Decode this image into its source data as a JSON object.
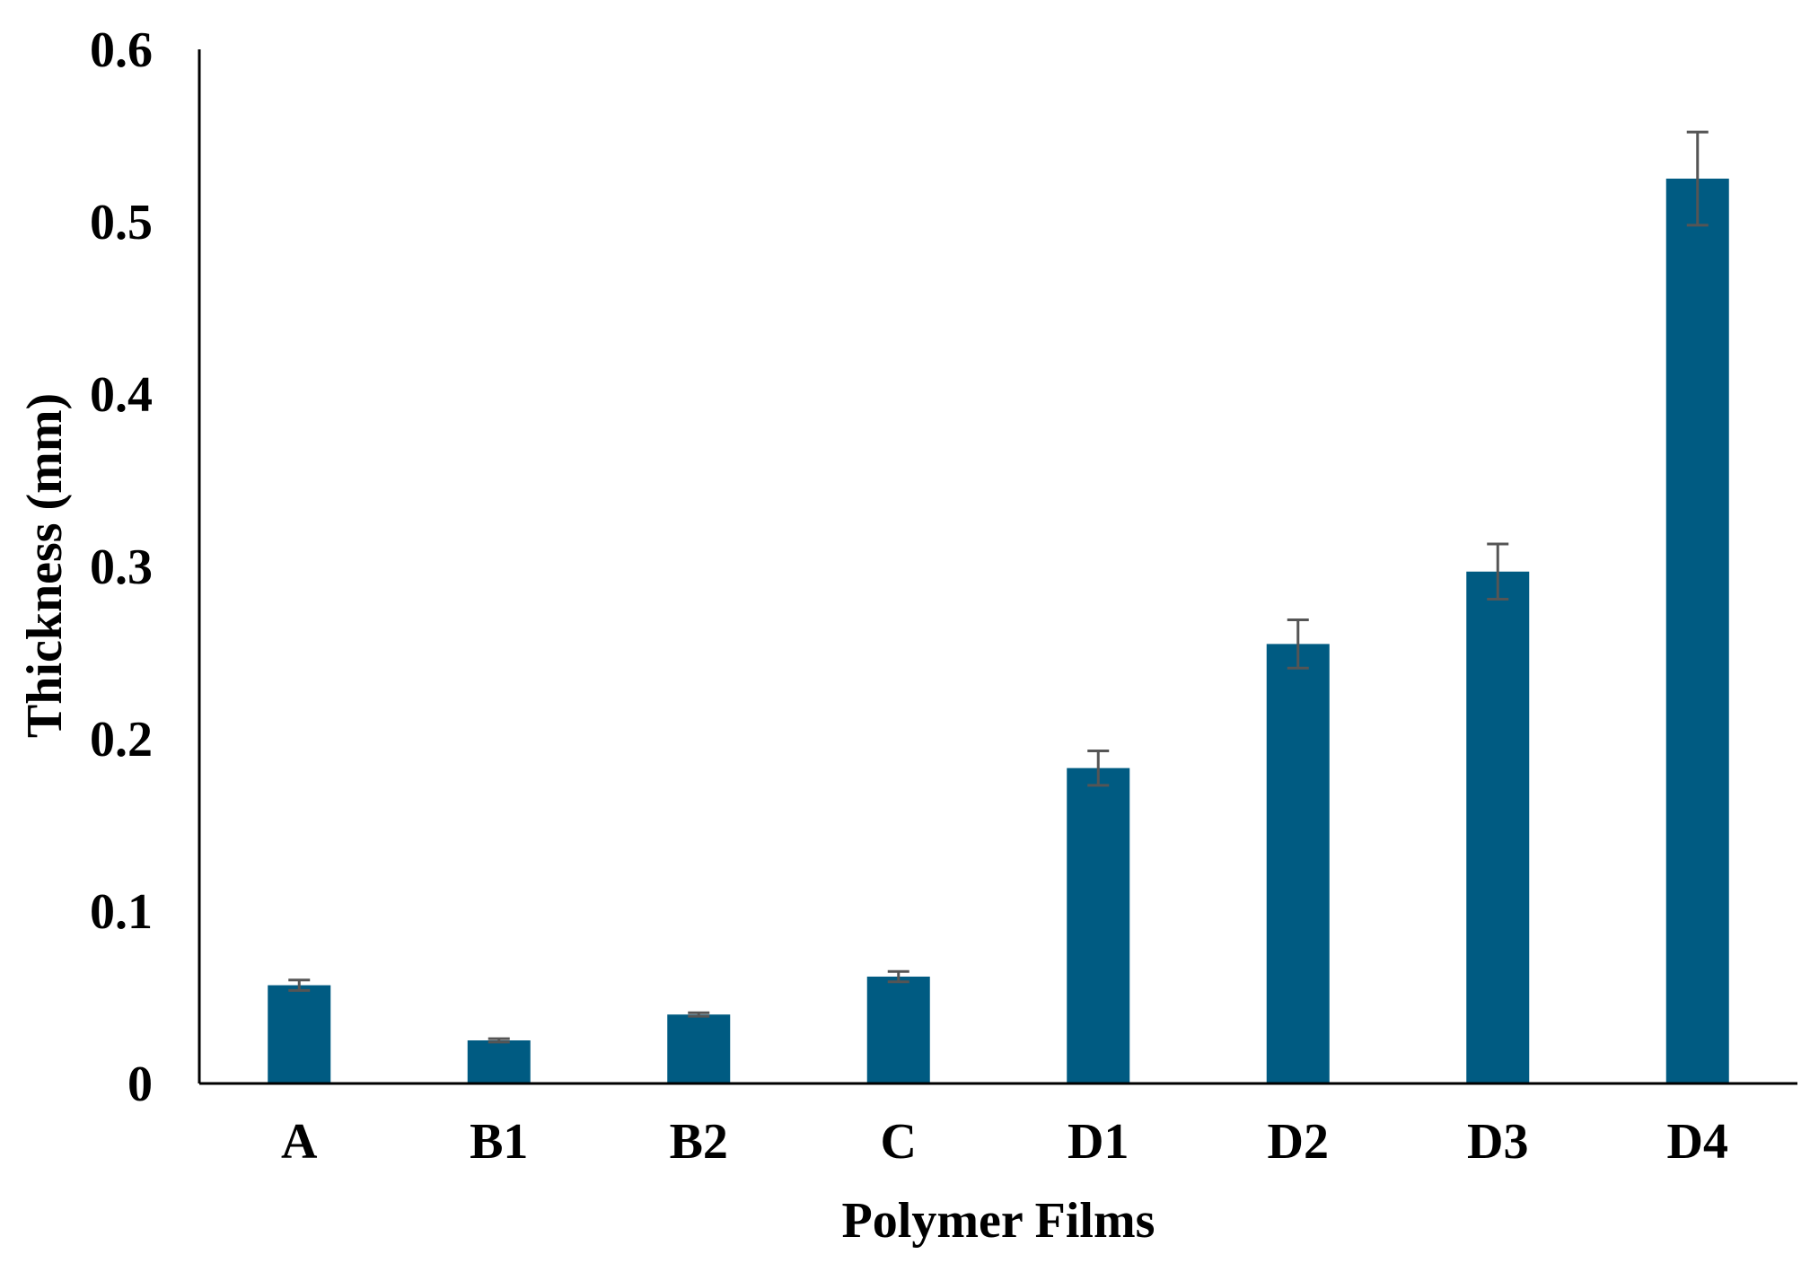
{
  "chart_data": {
    "type": "bar",
    "title": "",
    "xlabel": "Polymer Films",
    "ylabel": "Thickness (mm)",
    "ylim": [
      0,
      0.6
    ],
    "yticks": [
      0,
      0.1,
      0.2,
      0.3,
      0.4,
      0.5,
      0.6
    ],
    "ytick_labels": [
      "0",
      "0.1",
      "0.2",
      "0.3",
      "0.4",
      "0.5",
      "0.6"
    ],
    "categories": [
      "A",
      "B1",
      "B2",
      "C",
      "D1",
      "D2",
      "D3",
      "D4"
    ],
    "values": [
      0.057,
      0.025,
      0.04,
      0.062,
      0.183,
      0.255,
      0.297,
      0.525
    ],
    "error": [
      0.003,
      0.001,
      0.001,
      0.003,
      0.01,
      0.014,
      0.016,
      0.027
    ],
    "error_bars": true,
    "grid": false,
    "legend": "none",
    "colors": {
      "bar": "#005b82",
      "error_bar": "#555555",
      "axis": "#000000"
    }
  }
}
